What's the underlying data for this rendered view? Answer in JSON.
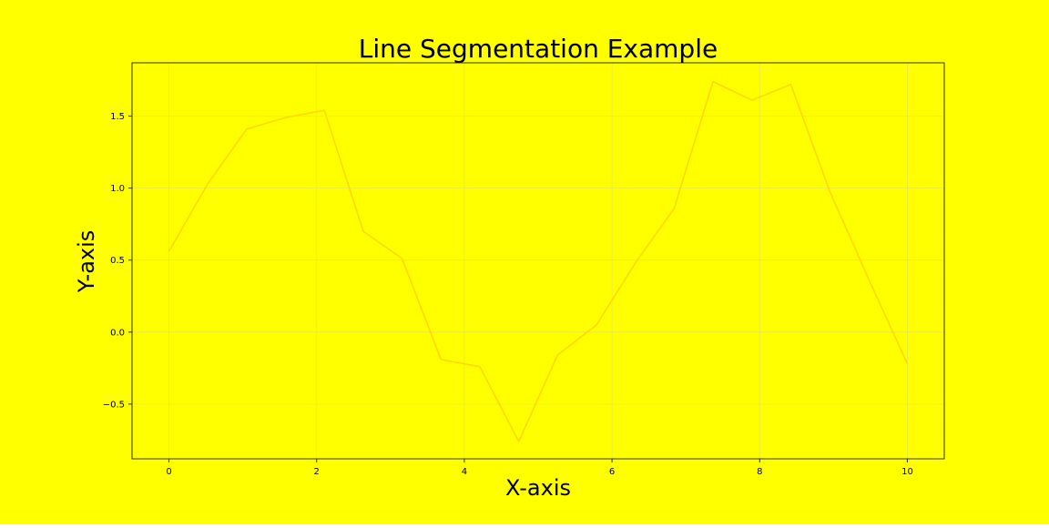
{
  "colors": {
    "figure_background": "#ffff00",
    "plot_background": "#ffff00",
    "line": "#ffd700",
    "grid": "#e6e64d",
    "axes": "#333333"
  },
  "chart_data": {
    "type": "line",
    "title": "Line Segmentation Example",
    "xlabel": "X-axis",
    "ylabel": "Y-axis",
    "xlim": [
      -0.5,
      10.5
    ],
    "ylim": [
      -0.88,
      1.87
    ],
    "xticks": [
      0,
      2,
      4,
      6,
      8,
      10
    ],
    "xtick_labels": [
      "0",
      "2",
      "4",
      "6",
      "8",
      "10"
    ],
    "yticks": [
      -0.5,
      0.0,
      0.5,
      1.0,
      1.5
    ],
    "ytick_labels": [
      "−0.5",
      "0.0",
      "0.5",
      "1.0",
      "1.5"
    ],
    "grid": true,
    "legend": false,
    "series": [
      {
        "x": [
          0,
          0.526,
          1.053,
          1.579,
          2.105,
          2.632,
          3.158,
          3.684,
          4.211,
          4.737,
          5.263,
          5.789,
          6.316,
          6.842,
          7.368,
          7.895,
          8.421,
          8.947,
          9.474,
          10.0
        ],
        "y": [
          0.56,
          1.03,
          1.41,
          1.49,
          1.54,
          0.7,
          0.51,
          -0.19,
          -0.24,
          -0.76,
          -0.16,
          0.05,
          0.48,
          0.86,
          1.74,
          1.61,
          1.72,
          0.98,
          0.37,
          -0.22
        ]
      }
    ]
  }
}
